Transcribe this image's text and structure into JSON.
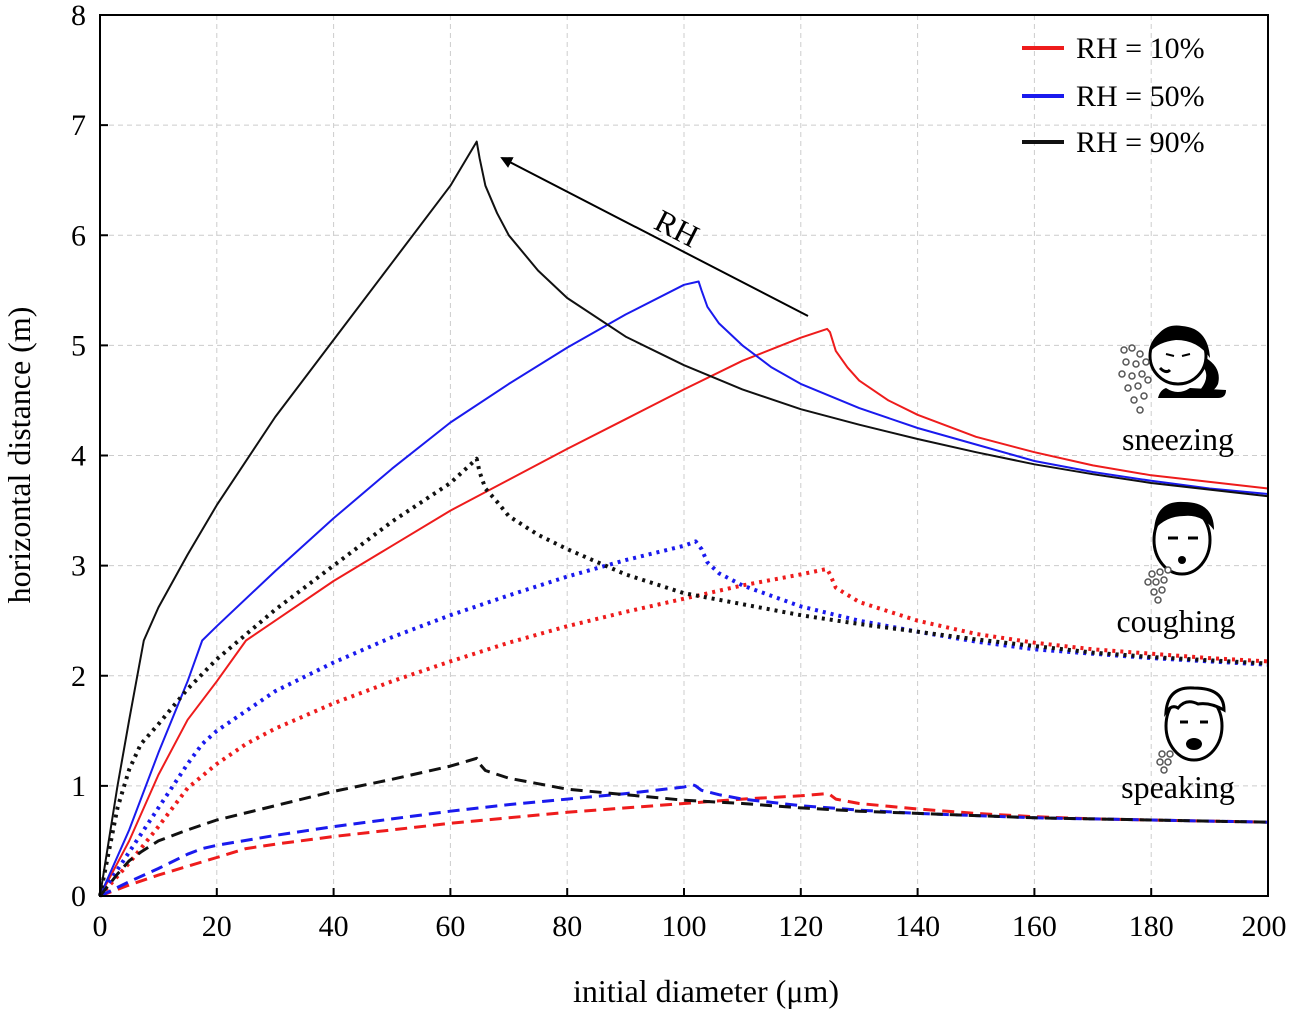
{
  "chart_data": {
    "type": "line",
    "xlabel": "initial diameter (μm)",
    "ylabel": "horizontal distance (m)",
    "xlim": [
      0,
      200
    ],
    "ylim": [
      0,
      8
    ],
    "xticks": [
      0,
      20,
      40,
      60,
      80,
      100,
      120,
      140,
      160,
      180,
      200
    ],
    "yticks": [
      0,
      1,
      2,
      3,
      4,
      5,
      6,
      7,
      8
    ],
    "grid": true,
    "legend_position": "top-right",
    "legend": [
      {
        "label": "RH = 10%",
        "color": "#ee1c1c"
      },
      {
        "label": "RH = 50%",
        "color": "#1a1aee"
      },
      {
        "label": "RH = 90%",
        "color": "#111111"
      }
    ],
    "annotations": {
      "arrow_label": "RH",
      "sneezing": "sneezing",
      "coughing": "coughing",
      "speaking": "speaking"
    },
    "series": [
      {
        "name": "RH = 10%",
        "activity": "sneezing",
        "style": "solid",
        "color": "#ee1c1c",
        "points": [
          [
            0,
            0
          ],
          [
            5,
            0.5
          ],
          [
            10,
            1.1
          ],
          [
            15,
            1.6
          ],
          [
            20,
            1.95
          ],
          [
            25,
            2.32
          ],
          [
            30,
            2.5
          ],
          [
            40,
            2.86
          ],
          [
            50,
            3.18
          ],
          [
            60,
            3.5
          ],
          [
            70,
            3.78
          ],
          [
            80,
            4.06
          ],
          [
            90,
            4.33
          ],
          [
            100,
            4.6
          ],
          [
            110,
            4.86
          ],
          [
            120,
            5.07
          ],
          [
            124.5,
            5.15
          ],
          [
            125,
            5.12
          ],
          [
            126,
            4.95
          ],
          [
            128,
            4.8
          ],
          [
            130,
            4.68
          ],
          [
            135,
            4.5
          ],
          [
            140,
            4.37
          ],
          [
            150,
            4.17
          ],
          [
            160,
            4.03
          ],
          [
            170,
            3.91
          ],
          [
            180,
            3.82
          ],
          [
            190,
            3.76
          ],
          [
            200,
            3.7
          ]
        ]
      },
      {
        "name": "RH = 50%",
        "activity": "sneezing",
        "style": "solid",
        "color": "#1a1aee",
        "points": [
          [
            0,
            0
          ],
          [
            5,
            0.6
          ],
          [
            10,
            1.3
          ],
          [
            15,
            1.95
          ],
          [
            17.5,
            2.32
          ],
          [
            20,
            2.45
          ],
          [
            30,
            2.95
          ],
          [
            40,
            3.43
          ],
          [
            50,
            3.88
          ],
          [
            60,
            4.3
          ],
          [
            70,
            4.65
          ],
          [
            80,
            4.98
          ],
          [
            90,
            5.28
          ],
          [
            100,
            5.55
          ],
          [
            102.5,
            5.58
          ],
          [
            103,
            5.5
          ],
          [
            104,
            5.35
          ],
          [
            106,
            5.2
          ],
          [
            110,
            5.0
          ],
          [
            115,
            4.8
          ],
          [
            120,
            4.65
          ],
          [
            130,
            4.43
          ],
          [
            140,
            4.25
          ],
          [
            150,
            4.1
          ],
          [
            160,
            3.95
          ],
          [
            170,
            3.85
          ],
          [
            180,
            3.77
          ],
          [
            190,
            3.7
          ],
          [
            200,
            3.65
          ]
        ]
      },
      {
        "name": "RH = 90%",
        "activity": "sneezing",
        "style": "solid",
        "color": "#111111",
        "points": [
          [
            0,
            0
          ],
          [
            3,
            1.0
          ],
          [
            5,
            1.6
          ],
          [
            7.5,
            2.32
          ],
          [
            10,
            2.62
          ],
          [
            15,
            3.1
          ],
          [
            20,
            3.55
          ],
          [
            30,
            4.35
          ],
          [
            40,
            5.05
          ],
          [
            50,
            5.75
          ],
          [
            60,
            6.45
          ],
          [
            64.5,
            6.85
          ],
          [
            65,
            6.7
          ],
          [
            66,
            6.45
          ],
          [
            68,
            6.2
          ],
          [
            70,
            6.0
          ],
          [
            75,
            5.68
          ],
          [
            80,
            5.43
          ],
          [
            90,
            5.08
          ],
          [
            100,
            4.82
          ],
          [
            110,
            4.6
          ],
          [
            120,
            4.42
          ],
          [
            130,
            4.28
          ],
          [
            140,
            4.15
          ],
          [
            150,
            4.03
          ],
          [
            160,
            3.92
          ],
          [
            170,
            3.83
          ],
          [
            180,
            3.75
          ],
          [
            190,
            3.69
          ],
          [
            200,
            3.63
          ]
        ]
      },
      {
        "name": "RH = 10%",
        "activity": "coughing",
        "style": "dotted",
        "color": "#ee1c1c",
        "points": [
          [
            0,
            0
          ],
          [
            5,
            0.3
          ],
          [
            10,
            0.63
          ],
          [
            15,
            0.98
          ],
          [
            20,
            1.2
          ],
          [
            25,
            1.38
          ],
          [
            30,
            1.52
          ],
          [
            40,
            1.75
          ],
          [
            50,
            1.95
          ],
          [
            60,
            2.13
          ],
          [
            70,
            2.3
          ],
          [
            80,
            2.45
          ],
          [
            90,
            2.58
          ],
          [
            100,
            2.7
          ],
          [
            110,
            2.82
          ],
          [
            120,
            2.92
          ],
          [
            124.5,
            2.97
          ],
          [
            125,
            2.92
          ],
          [
            126,
            2.8
          ],
          [
            130,
            2.67
          ],
          [
            140,
            2.5
          ],
          [
            150,
            2.38
          ],
          [
            160,
            2.3
          ],
          [
            170,
            2.24
          ],
          [
            180,
            2.2
          ],
          [
            190,
            2.16
          ],
          [
            200,
            2.13
          ]
        ]
      },
      {
        "name": "RH = 50%",
        "activity": "coughing",
        "style": "dotted",
        "color": "#1a1aee",
        "points": [
          [
            0,
            0
          ],
          [
            5,
            0.4
          ],
          [
            10,
            0.8
          ],
          [
            15,
            1.2
          ],
          [
            17.5,
            1.38
          ],
          [
            20,
            1.5
          ],
          [
            30,
            1.86
          ],
          [
            40,
            2.12
          ],
          [
            50,
            2.35
          ],
          [
            60,
            2.55
          ],
          [
            70,
            2.73
          ],
          [
            80,
            2.9
          ],
          [
            90,
            3.05
          ],
          [
            100,
            3.18
          ],
          [
            102,
            3.22
          ],
          [
            103,
            3.15
          ],
          [
            104,
            3.03
          ],
          [
            106,
            2.93
          ],
          [
            110,
            2.82
          ],
          [
            120,
            2.63
          ],
          [
            130,
            2.5
          ],
          [
            140,
            2.4
          ],
          [
            150,
            2.31
          ],
          [
            160,
            2.24
          ],
          [
            170,
            2.2
          ],
          [
            180,
            2.16
          ],
          [
            190,
            2.13
          ],
          [
            200,
            2.1
          ]
        ]
      },
      {
        "name": "RH = 90%",
        "activity": "coughing",
        "style": "dotted",
        "color": "#111111",
        "points": [
          [
            0,
            0
          ],
          [
            3,
            0.8
          ],
          [
            5,
            1.15
          ],
          [
            7,
            1.38
          ],
          [
            10,
            1.56
          ],
          [
            15,
            1.88
          ],
          [
            20,
            2.15
          ],
          [
            30,
            2.6
          ],
          [
            40,
            3.0
          ],
          [
            50,
            3.4
          ],
          [
            60,
            3.75
          ],
          [
            64.5,
            3.97
          ],
          [
            65,
            3.85
          ],
          [
            66,
            3.7
          ],
          [
            68,
            3.58
          ],
          [
            70,
            3.45
          ],
          [
            75,
            3.28
          ],
          [
            80,
            3.15
          ],
          [
            90,
            2.92
          ],
          [
            100,
            2.75
          ],
          [
            110,
            2.65
          ],
          [
            120,
            2.55
          ],
          [
            130,
            2.47
          ],
          [
            140,
            2.4
          ],
          [
            150,
            2.33
          ],
          [
            160,
            2.27
          ],
          [
            170,
            2.21
          ],
          [
            180,
            2.17
          ],
          [
            190,
            2.14
          ],
          [
            200,
            2.11
          ]
        ]
      },
      {
        "name": "RH = 10%",
        "activity": "speaking",
        "style": "dashed",
        "color": "#ee1c1c",
        "points": [
          [
            0,
            0
          ],
          [
            5,
            0.1
          ],
          [
            10,
            0.19
          ],
          [
            15,
            0.27
          ],
          [
            20,
            0.35
          ],
          [
            25,
            0.43
          ],
          [
            30,
            0.47
          ],
          [
            40,
            0.54
          ],
          [
            50,
            0.6
          ],
          [
            60,
            0.66
          ],
          [
            70,
            0.71
          ],
          [
            80,
            0.76
          ],
          [
            90,
            0.8
          ],
          [
            100,
            0.84
          ],
          [
            110,
            0.88
          ],
          [
            120,
            0.91
          ],
          [
            124.5,
            0.93
          ],
          [
            125,
            0.92
          ],
          [
            126,
            0.88
          ],
          [
            130,
            0.84
          ],
          [
            140,
            0.79
          ],
          [
            150,
            0.75
          ],
          [
            160,
            0.72
          ],
          [
            170,
            0.7
          ],
          [
            180,
            0.69
          ],
          [
            190,
            0.68
          ],
          [
            200,
            0.67
          ]
        ]
      },
      {
        "name": "RH = 50%",
        "activity": "speaking",
        "style": "dashed",
        "color": "#1a1aee",
        "points": [
          [
            0,
            0
          ],
          [
            5,
            0.13
          ],
          [
            10,
            0.25
          ],
          [
            15,
            0.38
          ],
          [
            17.5,
            0.43
          ],
          [
            20,
            0.46
          ],
          [
            30,
            0.55
          ],
          [
            40,
            0.63
          ],
          [
            50,
            0.7
          ],
          [
            60,
            0.77
          ],
          [
            70,
            0.83
          ],
          [
            80,
            0.88
          ],
          [
            90,
            0.93
          ],
          [
            100,
            0.99
          ],
          [
            101.5,
            1.01
          ],
          [
            102,
            1.0
          ],
          [
            103,
            0.96
          ],
          [
            106,
            0.92
          ],
          [
            110,
            0.88
          ],
          [
            120,
            0.82
          ],
          [
            130,
            0.78
          ],
          [
            140,
            0.75
          ],
          [
            150,
            0.73
          ],
          [
            160,
            0.71
          ],
          [
            170,
            0.7
          ],
          [
            180,
            0.69
          ],
          [
            190,
            0.68
          ],
          [
            200,
            0.67
          ]
        ]
      },
      {
        "name": "RH = 90%",
        "activity": "speaking",
        "style": "dashed",
        "color": "#111111",
        "points": [
          [
            0,
            0
          ],
          [
            3,
            0.2
          ],
          [
            5,
            0.32
          ],
          [
            7,
            0.4
          ],
          [
            10,
            0.5
          ],
          [
            15,
            0.6
          ],
          [
            20,
            0.69
          ],
          [
            30,
            0.82
          ],
          [
            40,
            0.95
          ],
          [
            50,
            1.06
          ],
          [
            60,
            1.18
          ],
          [
            64.5,
            1.25
          ],
          [
            65,
            1.2
          ],
          [
            66,
            1.14
          ],
          [
            70,
            1.07
          ],
          [
            75,
            1.02
          ],
          [
            80,
            0.97
          ],
          [
            90,
            0.92
          ],
          [
            100,
            0.87
          ],
          [
            110,
            0.84
          ],
          [
            120,
            0.8
          ],
          [
            130,
            0.77
          ],
          [
            140,
            0.75
          ],
          [
            150,
            0.73
          ],
          [
            160,
            0.71
          ],
          [
            170,
            0.7
          ],
          [
            180,
            0.69
          ],
          [
            190,
            0.68
          ],
          [
            200,
            0.67
          ]
        ]
      }
    ],
    "colors": {
      "red": "#ee1c1c",
      "blue": "#1a1aee",
      "black": "#111111",
      "grid": "#cccccc"
    },
    "icons": [
      "sneezing-person-icon",
      "coughing-person-icon",
      "speaking-person-icon"
    ]
  }
}
